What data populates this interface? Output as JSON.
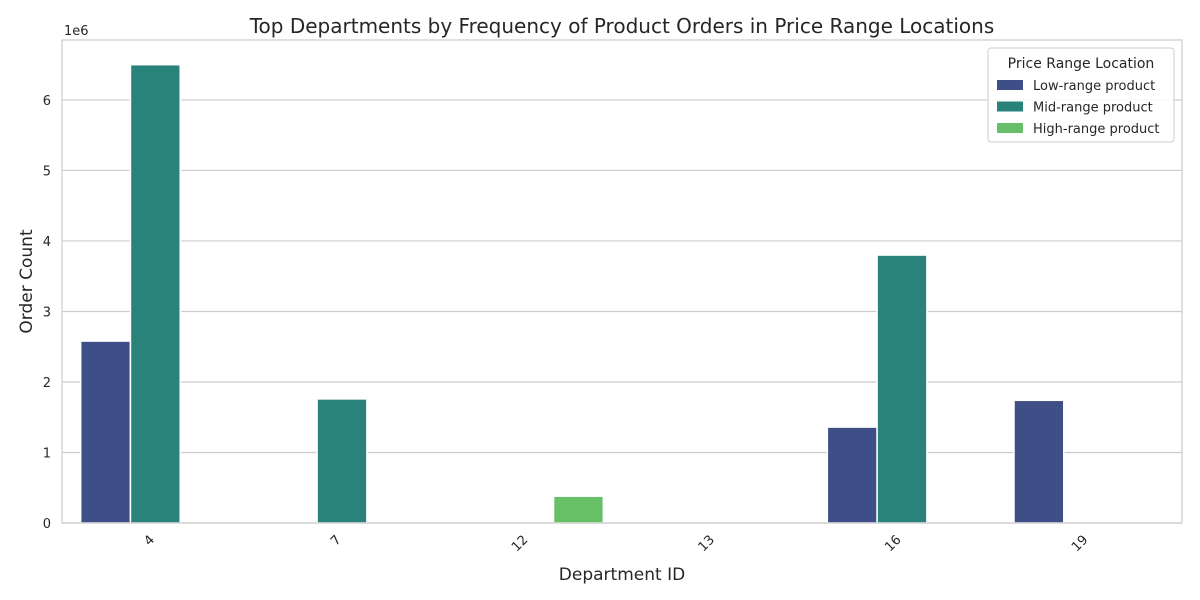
{
  "chart_data": {
    "type": "bar",
    "title": "Top Departments by Frequency of Product Orders in Price Range Locations",
    "xlabel": "Department ID",
    "ylabel": "Order Count",
    "y_scale_label": "1e6",
    "categories": [
      "4",
      "7",
      "12",
      "13",
      "16",
      "19"
    ],
    "y_ticks": [
      "0",
      "1",
      "2",
      "3",
      "4",
      "5",
      "6"
    ],
    "ylim": [
      0,
      6.85
    ],
    "grid": "horizontal",
    "legend_position": "top-right",
    "legend_title": "Price Range Location",
    "series": [
      {
        "name": "Low-range product",
        "color": "#3e4e87",
        "values": [
          2.58,
          0,
          0,
          0,
          1.36,
          1.74
        ]
      },
      {
        "name": "Mid-range product",
        "color": "#2a837b",
        "values": [
          6.5,
          1.76,
          0,
          0,
          3.8,
          0
        ]
      },
      {
        "name": "High-range product",
        "color": "#67bf68",
        "values": [
          0,
          0,
          0.38,
          0,
          0,
          0
        ]
      }
    ]
  }
}
